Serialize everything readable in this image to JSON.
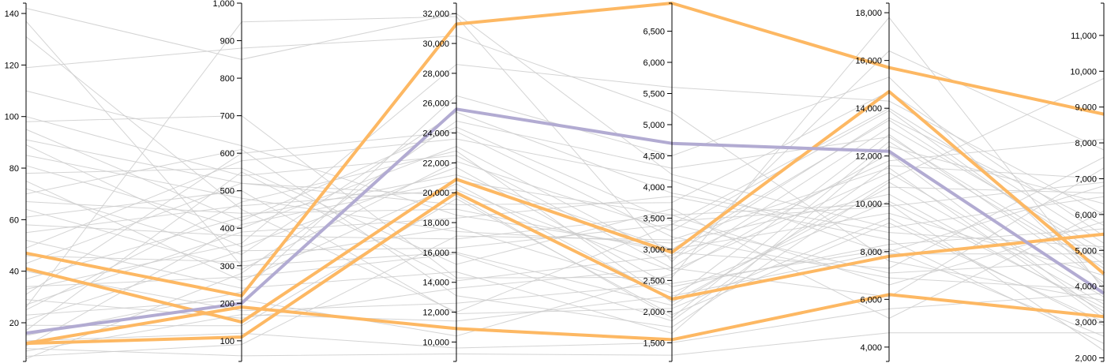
{
  "chart_data": {
    "type": "parallel-coordinates",
    "grid": false,
    "colors": {
      "background_lines": "#cccccc",
      "orange": "#fdb863",
      "purple": "#b2abd2",
      "axis": "#000000"
    },
    "axes": [
      {
        "domain": [
          5,
          144
        ],
        "ticks": [
          20,
          40,
          60,
          80,
          100,
          120,
          140
        ],
        "tick_labels": [
          "20",
          "40",
          "60",
          "80",
          "100",
          "120",
          "140"
        ]
      },
      {
        "domain": [
          45,
          1000
        ],
        "ticks": [
          100,
          200,
          300,
          400,
          500,
          600,
          700,
          800,
          900,
          1000
        ],
        "tick_labels": [
          "100",
          "200",
          "300",
          "400",
          "500",
          "600",
          "700",
          "800",
          "900",
          "1,000"
        ]
      },
      {
        "domain": [
          8700,
          32700
        ],
        "ticks": [
          10000,
          12000,
          14000,
          16000,
          18000,
          20000,
          22000,
          24000,
          26000,
          28000,
          30000,
          32000
        ],
        "tick_labels": [
          "10,000",
          "12,000",
          "14,000",
          "16,000",
          "18,000",
          "20,000",
          "22,000",
          "24,000",
          "26,000",
          "28,000",
          "30,000",
          "32,000"
        ]
      },
      {
        "domain": [
          1200,
          6950
        ],
        "ticks": [
          1500,
          2000,
          2500,
          3000,
          3500,
          4000,
          4500,
          5000,
          5500,
          6000,
          6500
        ],
        "tick_labels": [
          "1,500",
          "2,000",
          "2,500",
          "3,000",
          "3,500",
          "4,000",
          "4,500",
          "5,000",
          "5,500",
          "6,000",
          "6,500"
        ]
      },
      {
        "domain": [
          3400,
          18400
        ],
        "ticks": [
          4000,
          6000,
          8000,
          10000,
          12000,
          14000,
          16000,
          18000
        ],
        "tick_labels": [
          "4,000",
          "6,000",
          "8,000",
          "10,000",
          "12,000",
          "14,000",
          "16,000",
          "18,000"
        ]
      },
      {
        "domain": [
          1900,
          11900
        ],
        "ticks": [
          2000,
          3000,
          4000,
          5000,
          6000,
          7000,
          8000,
          9000,
          10000,
          11000
        ],
        "tick_labels": [
          "2,000",
          "3,000",
          "4,000",
          "5,000",
          "6,000",
          "7,000",
          "8,000",
          "9,000",
          "10,000",
          "11,000"
        ]
      }
    ],
    "highlighted": [
      {
        "color": "orange",
        "values": [
          47,
          220,
          31300,
          6950,
          15700,
          8800
        ]
      },
      {
        "color": "orange",
        "values": [
          41,
          150,
          20900,
          2950,
          14700,
          4350
        ]
      },
      {
        "color": "orange",
        "values": [
          12,
          110,
          20000,
          2200,
          7800,
          5450
        ]
      },
      {
        "color": "orange",
        "values": [
          12,
          190,
          10900,
          1550,
          6200,
          3150
        ]
      },
      {
        "color": "purple",
        "values": [
          16,
          200,
          25600,
          4700,
          12200,
          3800
        ]
      }
    ],
    "background": [
      [
        142,
        850,
        32000,
        4200,
        9000,
        6500
      ],
      [
        137,
        300,
        16000,
        2100,
        11000,
        9800
      ],
      [
        131,
        450,
        12000,
        3400,
        14000,
        5200
      ],
      [
        119,
        880,
        30500,
        5200,
        7600,
        3600
      ],
      [
        110,
        620,
        18500,
        3000,
        13500,
        4800
      ],
      [
        100,
        540,
        22500,
        2700,
        6100,
        7300
      ],
      [
        98,
        700,
        14300,
        2550,
        17800,
        3900
      ],
      [
        95,
        420,
        24400,
        3450,
        9900,
        6900
      ],
      [
        91,
        520,
        19800,
        1900,
        12600,
        4400
      ],
      [
        89,
        350,
        21700,
        2400,
        8300,
        5600
      ],
      [
        85,
        480,
        17400,
        3100,
        10400,
        3300
      ],
      [
        81,
        400,
        23100,
        2850,
        11800,
        8100
      ],
      [
        78,
        560,
        15200,
        3650,
        5200,
        6100
      ],
      [
        75,
        260,
        20600,
        2200,
        12900,
        4100
      ],
      [
        72,
        330,
        25400,
        3900,
        8800,
        5100
      ],
      [
        70,
        610,
        13100,
        1750,
        10900,
        3500
      ],
      [
        67,
        440,
        18900,
        2950,
        7300,
        7600
      ],
      [
        64,
        290,
        22100,
        3300,
        13900,
        4600
      ],
      [
        61,
        500,
        11900,
        2050,
        9400,
        2900
      ],
      [
        58,
        380,
        16900,
        3550,
        6600,
        5800
      ],
      [
        55,
        460,
        20200,
        2650,
        11300,
        3700
      ],
      [
        52,
        240,
        14700,
        1650,
        12400,
        6300
      ],
      [
        49,
        580,
        23600,
        4100,
        7900,
        4900
      ],
      [
        46,
        310,
        17700,
        2300,
        10100,
        3400
      ],
      [
        43,
        520,
        19200,
        3750,
        14700,
        5400
      ],
      [
        40,
        180,
        12600,
        2450,
        8100,
        2600
      ],
      [
        37,
        430,
        21200,
        3000,
        9600,
        4300
      ],
      [
        34,
        270,
        15900,
        1850,
        11600,
        7000
      ],
      [
        31,
        600,
        24100,
        3200,
        6900,
        3900
      ],
      [
        29,
        160,
        13600,
        2700,
        13200,
        5000
      ],
      [
        27,
        390,
        18300,
        3850,
        8500,
        2400
      ],
      [
        25,
        470,
        22800,
        2150,
        10700,
        6600
      ],
      [
        23,
        210,
        10400,
        2600,
        12100,
        3200
      ],
      [
        21,
        340,
        16300,
        3400,
        7100,
        4700
      ],
      [
        19,
        140,
        19600,
        1950,
        9200,
        3000
      ],
      [
        17,
        550,
        14100,
        2900,
        13600,
        5700
      ],
      [
        15,
        230,
        26500,
        4500,
        15300,
        4000
      ],
      [
        13,
        120,
        9600,
        1500,
        5600,
        3800
      ],
      [
        11,
        410,
        20800,
        3550,
        10000,
        2200
      ],
      [
        9,
        170,
        11400,
        2250,
        8000,
        6800
      ],
      [
        7,
        90,
        17100,
        3150,
        11500,
        3100
      ],
      [
        6,
        280,
        24800,
        4300,
        12800,
        4500
      ],
      [
        10,
        60,
        9200,
        1300,
        4600,
        2700
      ],
      [
        26,
        950,
        31800,
        2800,
        16400,
        7800
      ],
      [
        33,
        360,
        28600,
        5600,
        14300,
        6000
      ]
    ]
  }
}
